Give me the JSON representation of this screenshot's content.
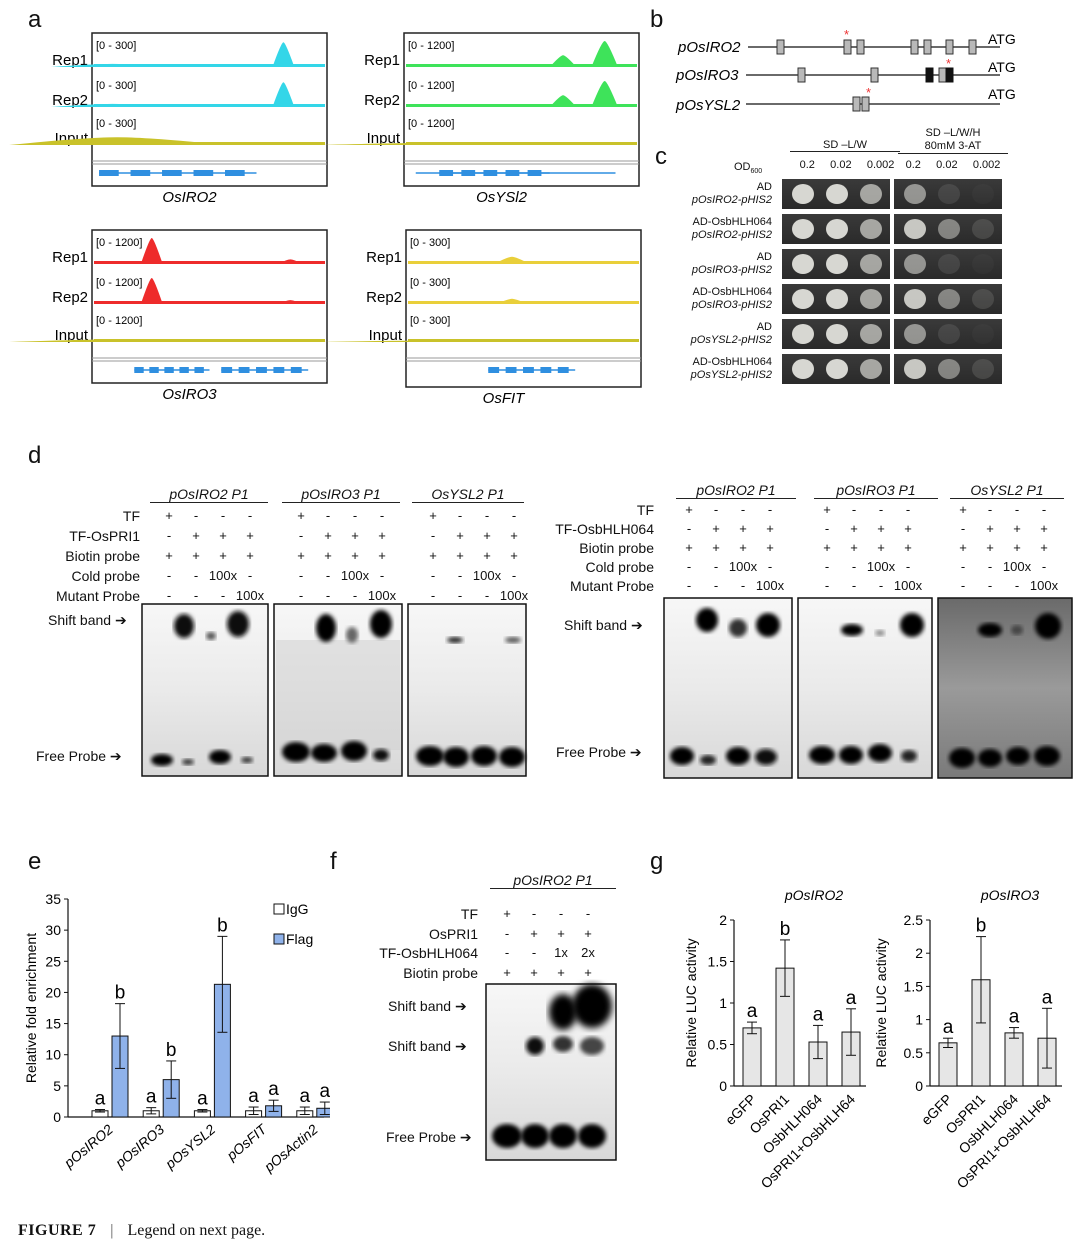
{
  "panels": {
    "a": "a",
    "b": "b",
    "c": "c",
    "d": "d",
    "e": "e",
    "f": "f",
    "g": "g"
  },
  "panel_a": {
    "tracks": [
      {
        "gene": "OsIRO2",
        "color": "#33d6e8",
        "labels": [
          "Rep1",
          "Rep2",
          "Input"
        ],
        "ranges": [
          "[0 - 300]",
          "[0 - 300]",
          "[0 - 300]"
        ]
      },
      {
        "gene": "OsYSl2",
        "color": "#3ee35a",
        "labels": [
          "Rep1",
          "Rep2",
          "Input"
        ],
        "ranges": [
          "[0 - 1200]",
          "[0 - 1200]",
          "[0 - 1200]"
        ]
      },
      {
        "gene": "OsIRO3",
        "color": "#ee2b2b",
        "labels": [
          "Rep1",
          "Rep2",
          "Input"
        ],
        "ranges": [
          "[0 - 1200]",
          "[0 - 1200]",
          "[0 - 1200]"
        ]
      },
      {
        "gene": "OsFIT",
        "color": "#e9cf3a",
        "labels": [
          "Rep1",
          "Rep2",
          "Input"
        ],
        "ranges": [
          "[0 - 300]",
          "[0 - 300]",
          "[0 - 300]"
        ]
      }
    ],
    "input_color": "#c9c22a",
    "gene_color": "#2f8fe0"
  },
  "panel_b": {
    "promoters": [
      "pOsIRO2",
      "pOsIRO3",
      "pOsYSL2"
    ],
    "atg": "ATG"
  },
  "panel_c": {
    "col_group1": "SD –L/W",
    "col_group2_line1": "SD –L/W/H",
    "col_group2_line2": "80mM 3-AT",
    "od": "OD",
    "od_sub": "600",
    "dilutions": [
      "0.2",
      "0.02",
      "0.002"
    ],
    "rows": [
      {
        "line1": "AD",
        "line2": "pOsIRO2-pHIS2"
      },
      {
        "line1": "AD-OsbHLH064",
        "line2": "pOsIRO2-pHIS2"
      },
      {
        "line1": "AD",
        "line2": "pOsIRO3-pHIS2"
      },
      {
        "line1": "AD-OsbHLH064",
        "line2": "pOsIRO3-pHIS2"
      },
      {
        "line1": "AD",
        "line2": "pOsYSL2-pHIS2"
      },
      {
        "line1": "AD-OsbHLH064",
        "line2": "pOsYSL2-pHIS2"
      }
    ]
  },
  "panel_d": {
    "left": {
      "titles": [
        "pOsIRO2 P1",
        "pOsIRO3 P1",
        "OsYSL2 P1"
      ],
      "row_labels": [
        "TF",
        "TF-OsPRI1",
        "Biotin probe",
        "Cold probe",
        "Mutant Probe"
      ]
    },
    "right": {
      "titles": [
        "pOsIRO2 P1",
        "pOsIRO3 P1",
        "OsYSL2 P1"
      ],
      "row_labels": [
        "TF",
        "TF-OsbHLH064",
        "Biotin probe",
        "Cold probe",
        "Mutant Probe"
      ]
    },
    "signs": [
      [
        "+",
        "-",
        "-",
        "-"
      ],
      [
        "-",
        "+",
        "+",
        "+"
      ],
      [
        "+",
        "+",
        "+",
        "+"
      ],
      [
        "-",
        "-",
        "100x",
        "-"
      ],
      [
        "-",
        "-",
        "-",
        "100x"
      ]
    ],
    "shift_band": "Shift band",
    "free_probe": "Free Probe"
  },
  "panel_e_chart": {
    "type": "bar",
    "categories": [
      "pOsIRO2",
      "pOsIRO3",
      "pOsYSL2",
      "pOsFIT",
      "pOsActin2"
    ],
    "series": [
      {
        "name": "IgG",
        "values": [
          1.0,
          1.0,
          1.0,
          1.0,
          1.0
        ],
        "errors": [
          0.2,
          0.5,
          0.2,
          0.6,
          0.6
        ],
        "letters": [
          "a",
          "a",
          "a",
          "a",
          "a"
        ],
        "color": "#ffffff"
      },
      {
        "name": "Flag",
        "values": [
          13,
          6,
          21.3,
          1.8,
          1.4
        ],
        "errors": [
          5.2,
          3.0,
          7.7,
          0.9,
          1.0
        ],
        "letters": [
          "b",
          "b",
          "b",
          "a",
          "a"
        ],
        "color": "#8fb2ea"
      }
    ],
    "ylabel": "Relative fold enrichment",
    "ylim": [
      0,
      35
    ],
    "yticks": [
      "0",
      "5",
      "10",
      "15",
      "20",
      "25",
      "30",
      "35"
    ]
  },
  "panel_f": {
    "title": "pOsIRO2 P1",
    "row_labels": [
      "TF",
      "OsPRI1",
      "TF-OsbHLH064",
      "Biotin probe"
    ],
    "signs": [
      [
        "+",
        "-",
        "-",
        "-"
      ],
      [
        "-",
        "+",
        "+",
        "+"
      ],
      [
        "-",
        "-",
        "1x",
        "2x"
      ],
      [
        "+",
        "+",
        "+",
        "+"
      ]
    ],
    "shift_band_1": "Shift band",
    "shift_band_2": "Shift band",
    "free_probe": "Free Probe"
  },
  "panel_g_charts": [
    {
      "type": "bar",
      "title": "pOsIRO2",
      "categories": [
        "eGFP",
        "OsPRI1",
        "OsbHLH064",
        "OsPRI1+OsbHLH64"
      ],
      "values": [
        0.7,
        1.42,
        0.53,
        0.65
      ],
      "errors": [
        0.07,
        0.34,
        0.2,
        0.28
      ],
      "letters": [
        "a",
        "b",
        "a",
        "a"
      ],
      "ylabel": "Relative LUC activity",
      "ylim": [
        0,
        2
      ],
      "yticks": [
        "0",
        "0.5",
        "1",
        "1.5",
        "2"
      ]
    },
    {
      "type": "bar",
      "title": "pOsIRO3",
      "categories": [
        "eGFP",
        "OsPRI1",
        "OsbHLH064",
        "OsPRI1+OsbHLH64"
      ],
      "values": [
        0.65,
        1.6,
        0.8,
        0.72
      ],
      "errors": [
        0.07,
        0.65,
        0.08,
        0.45
      ],
      "letters": [
        "a",
        "b",
        "a",
        "a"
      ],
      "ylabel": "Relative LUC activity",
      "ylim": [
        0,
        2.5
      ],
      "yticks": [
        "0",
        "0.5",
        "1",
        "1.5",
        "2",
        "2.5"
      ]
    }
  ],
  "caption": {
    "label": "FIGURE 7",
    "separator": "|",
    "text": "Legend on next page."
  }
}
